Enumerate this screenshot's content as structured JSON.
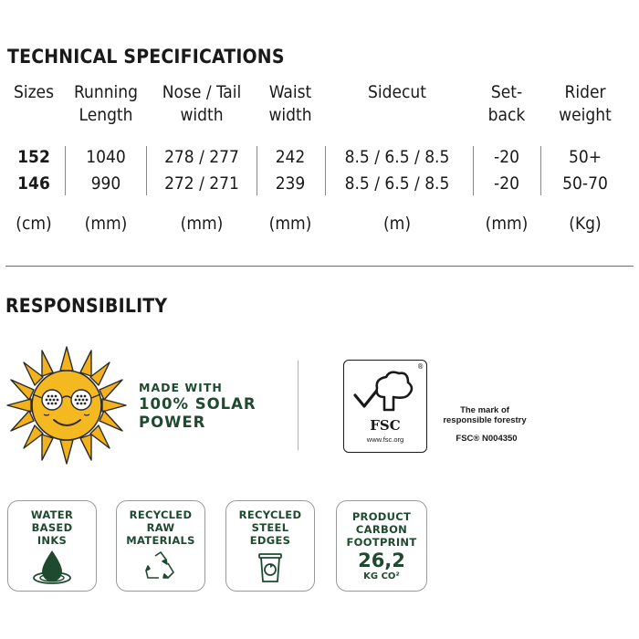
{
  "specs": {
    "title": "TECHNICAL SPECIFICATIONS",
    "headers": [
      [
        "Sizes",
        ""
      ],
      [
        "Running",
        "Length"
      ],
      [
        "Nose / Tail",
        "width"
      ],
      [
        "Waist",
        "width"
      ],
      [
        "Sidecut",
        ""
      ],
      [
        "Set-",
        "back"
      ],
      [
        "Rider",
        "weight"
      ]
    ],
    "rows": [
      [
        "152",
        "1040",
        "278 / 277",
        "242",
        "8.5 / 6.5 / 8.5",
        "-20",
        "50+"
      ],
      [
        "146",
        "990",
        "272 / 271",
        "239",
        "8.5 / 6.5 / 8.5",
        "-20",
        "50-70"
      ]
    ],
    "units": [
      "(cm)",
      "(mm)",
      "(mm)",
      "(mm)",
      "(m)",
      "(mm)",
      "(Kg)"
    ]
  },
  "responsibility": {
    "title": "RESPONSIBILITY",
    "solar_lines": [
      "MADE WITH",
      "100% SOLAR",
      "POWER"
    ],
    "fsc": {
      "logo_text": "FSC",
      "url": "www.fsc.org",
      "registered": "®",
      "mark_lines": [
        "The mark of",
        "responsible forestry"
      ],
      "code": "FSC® N004350"
    },
    "badges": [
      {
        "lines": [
          "WATER",
          "BASED",
          "INKS"
        ],
        "icon": "water-drop-icon"
      },
      {
        "lines": [
          "RECYCLED",
          "RAW",
          "MATERIALS"
        ],
        "icon": "recycle-icon"
      },
      {
        "lines": [
          "RECYCLED",
          "STEEL",
          "EDGES"
        ],
        "icon": "recycle-bin-icon"
      },
      {
        "lines": [
          "PRODUCT",
          "CARBON",
          "FOOTPRINT"
        ],
        "value": "26,2",
        "unit": "KG CO²",
        "icon": "carbon-footprint-icon"
      }
    ]
  },
  "colors": {
    "accent_green": "#1f4a2f",
    "sun_yellow": "#f2b21b",
    "sun_outline": "#2a2a2a"
  }
}
